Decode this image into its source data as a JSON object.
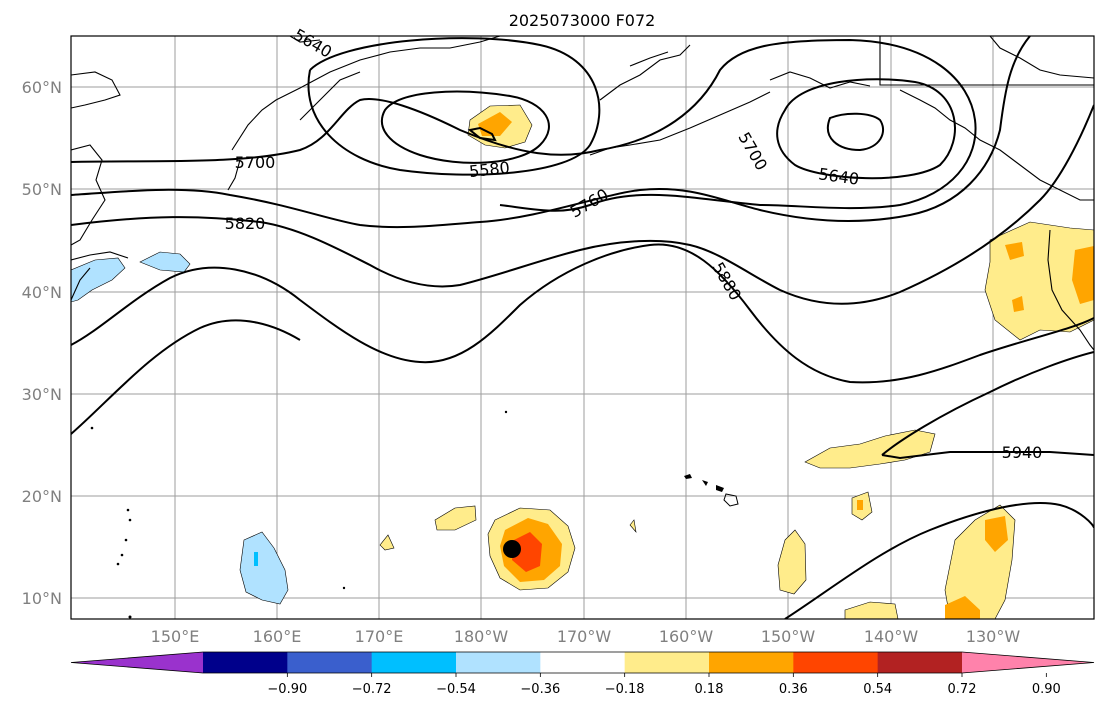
{
  "title": "2025073000 F072",
  "lat_labels": [
    "60°N",
    "50°N",
    "40°N",
    "30°N",
    "20°N",
    "10°N"
  ],
  "lon_labels": [
    "150°E",
    "160°E",
    "170°E",
    "180°W",
    "170°W",
    "160°W",
    "150°W",
    "140°W",
    "130°W"
  ],
  "contour_labels": [
    "5700",
    "5820",
    "5580",
    "5760",
    "5880",
    "5700",
    "5640",
    "5940",
    "5640"
  ],
  "colorbar": {
    "tick_labels": [
      "−0.90",
      "−0.72",
      "−0.54",
      "−0.36",
      "−0.18",
      "0.18",
      "0.36",
      "0.54",
      "0.72",
      "0.90"
    ],
    "colors": [
      "#9a32cd",
      "#00008b",
      "#3a5fcd",
      "#00bfff",
      "#b0e2ff",
      "#ffffff",
      "#ffec8b",
      "#ffa500",
      "#ff4500",
      "#b22222",
      "#ff82ab"
    ]
  },
  "marker": "storm-center-dot"
}
